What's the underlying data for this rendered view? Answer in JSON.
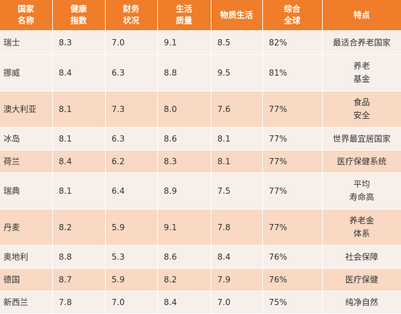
{
  "table": {
    "headers": [
      "国家\n名称",
      "健康\n指数",
      "财务\n状况",
      "生活\n质量",
      "物质生活",
      "综合\n全球",
      "特点"
    ],
    "rows": [
      [
        "瑞士",
        "8.3",
        "7.0",
        "9.1",
        "8.5",
        "82%",
        "最适合养老国家"
      ],
      [
        "挪威",
        "8.4",
        "6.3",
        "8.8",
        "9.5",
        "81%",
        "养老\n基金"
      ],
      [
        "澳大利亚",
        "8.1",
        "7.3",
        "8.0",
        "7.6",
        "77%",
        "食品\n安全"
      ],
      [
        "冰岛",
        "8.1",
        "6.3",
        "8.6",
        "8.1",
        "77%",
        "世界最宜居国家"
      ],
      [
        "荷兰",
        "8.4",
        "6.2",
        "8.3",
        "8.1",
        "77%",
        "医疗保健系统"
      ],
      [
        "瑞典",
        "8.1",
        "6.4",
        "8.9",
        "7.5",
        "77%",
        "平均\n寿命高"
      ],
      [
        "丹麦",
        "8.2",
        "5.9",
        "9.1",
        "7.8",
        "77%",
        "养老金\n体系"
      ],
      [
        "奥地利",
        "8.8",
        "5.3",
        "8.6",
        "8.4",
        "76%",
        "社会保障"
      ],
      [
        "德国",
        "8.7",
        "5.9",
        "8.2",
        "7.9",
        "76%",
        "医疗保健"
      ],
      [
        "新西兰",
        "7.8",
        "7.0",
        "8.4",
        "7.0",
        "75%",
        "纯净自然"
      ]
    ]
  },
  "colors": {
    "header_bg": "#ef7d29",
    "header_text": "#ffffff",
    "row_light": "#f7efea",
    "row_dark": "#f9d9c3",
    "cell_text": "#333333"
  }
}
